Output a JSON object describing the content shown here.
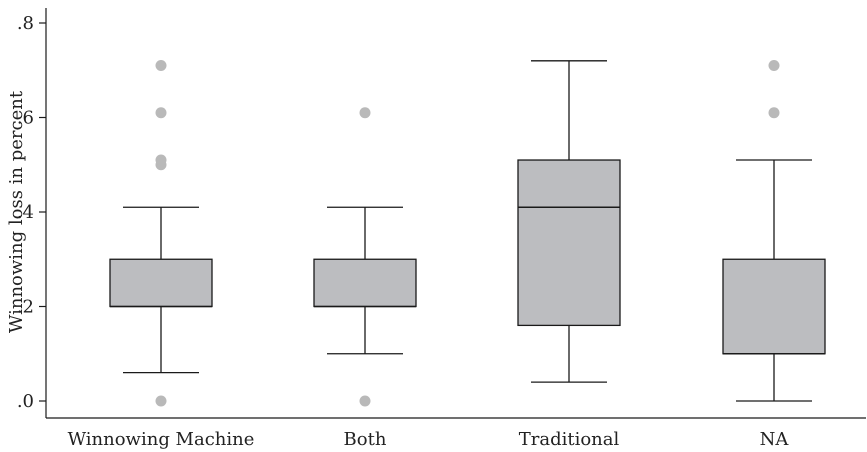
{
  "chart_data": {
    "type": "box",
    "title": "",
    "xlabel": "",
    "ylabel": "Winnowing loss in percent",
    "ylim": [
      0,
      0.8
    ],
    "yticks": [
      0,
      0.2,
      0.4,
      0.6,
      0.8
    ],
    "ytick_labels": [
      ".0",
      ".2",
      ".4",
      ".6",
      ".8"
    ],
    "grid": false,
    "legend": "none",
    "categories": [
      "Winnowing Machine",
      "Both",
      "Traditional",
      "NA"
    ],
    "boxes": [
      {
        "category": "Winnowing Machine",
        "whisker_low": 0.06,
        "q1": 0.2,
        "median": 0.2,
        "q3": 0.3,
        "whisker_high": 0.41,
        "outliers": [
          0.0,
          0.5,
          0.51,
          0.61,
          0.71
        ]
      },
      {
        "category": "Both",
        "whisker_low": 0.1,
        "q1": 0.2,
        "median": 0.2,
        "q3": 0.3,
        "whisker_high": 0.41,
        "outliers": [
          0.0,
          0.61
        ]
      },
      {
        "category": "Traditional",
        "whisker_low": 0.04,
        "q1": 0.16,
        "median": 0.41,
        "q3": 0.51,
        "whisker_high": 0.72,
        "outliers": []
      },
      {
        "category": "NA",
        "whisker_low": 0.0,
        "q1": 0.1,
        "median": 0.1,
        "q3": 0.3,
        "whisker_high": 0.51,
        "outliers": [
          0.61,
          0.71
        ]
      }
    ],
    "colors": {
      "box_fill": "#bcbdc0",
      "outlier": "#b9b9b9",
      "line": "#1a1a1a"
    }
  }
}
